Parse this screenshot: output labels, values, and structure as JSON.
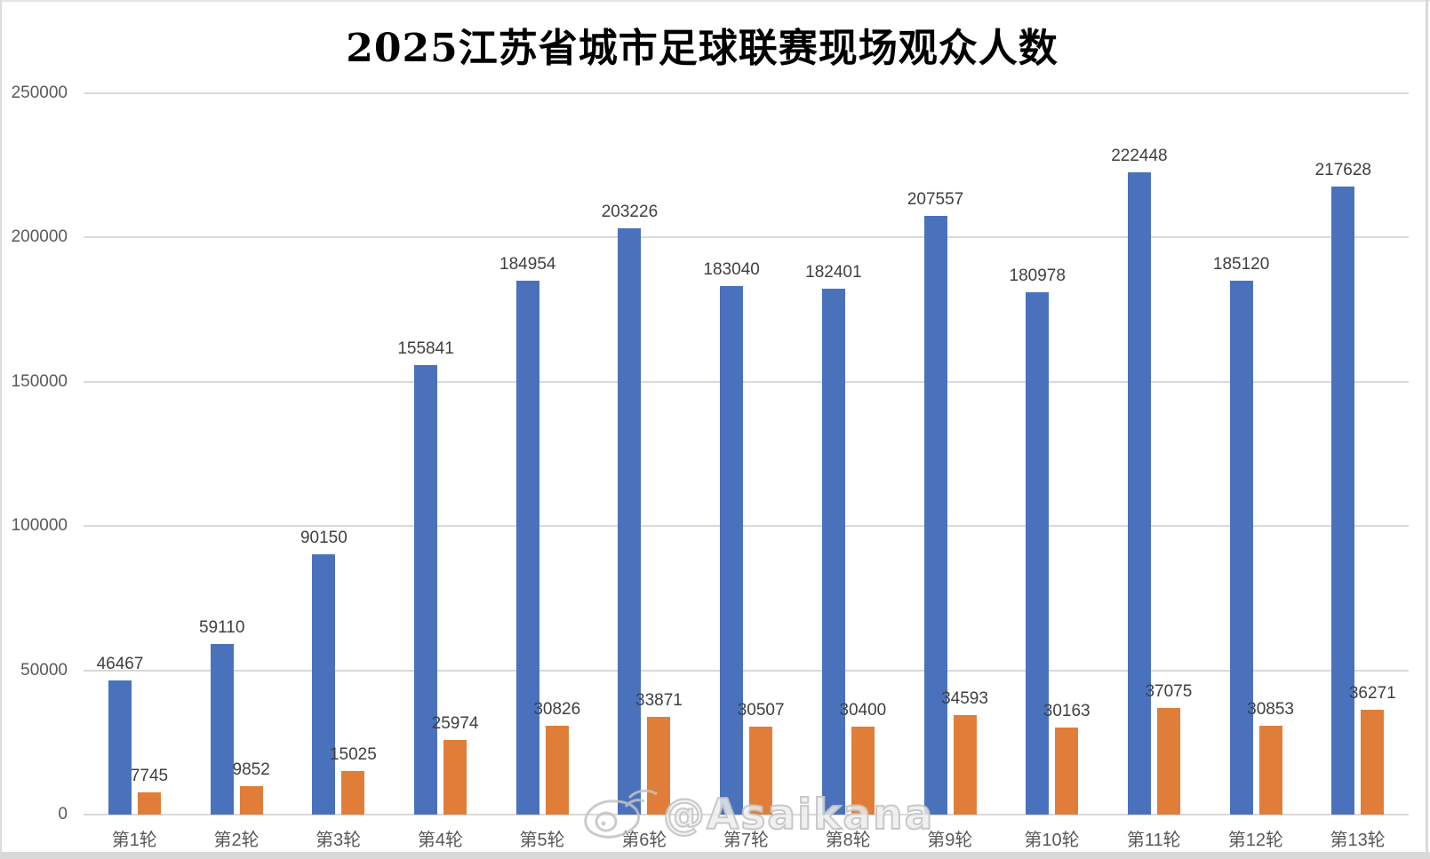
{
  "chart_data": {
    "type": "bar",
    "title": "2025江苏省城市足球联赛现场观众人数",
    "categories": [
      "第1轮",
      "第2轮",
      "第3轮",
      "第4轮",
      "第5轮",
      "第6轮",
      "第7轮",
      "第8轮",
      "第9轮",
      "第10轮",
      "第11轮",
      "第12轮",
      "第13轮"
    ],
    "series": [
      {
        "name": "blue",
        "color": "#4a72bc",
        "values": [
          46467,
          59110,
          90150,
          155841,
          184954,
          203226,
          183040,
          182401,
          207557,
          180978,
          222448,
          185120,
          217628
        ]
      },
      {
        "name": "orange",
        "color": "#e07e39",
        "values": [
          7745,
          9852,
          15025,
          25974,
          30826,
          33871,
          30507,
          30400,
          34593,
          30163,
          37075,
          30853,
          36271
        ]
      }
    ],
    "ylabel": "",
    "xlabel": "",
    "ylim": [
      0,
      250000
    ],
    "yticks": [
      0,
      50000,
      100000,
      150000,
      200000,
      250000
    ],
    "grid": true,
    "legend_position": "none",
    "data_labels": true
  },
  "watermark": {
    "text": "@Asaikana",
    "icon": "weibo-icon"
  },
  "colors": {
    "gridline": "#d9d9d9",
    "axis_text": "#595959",
    "label_text": "#3f3f3f",
    "background": "#ffffff"
  }
}
